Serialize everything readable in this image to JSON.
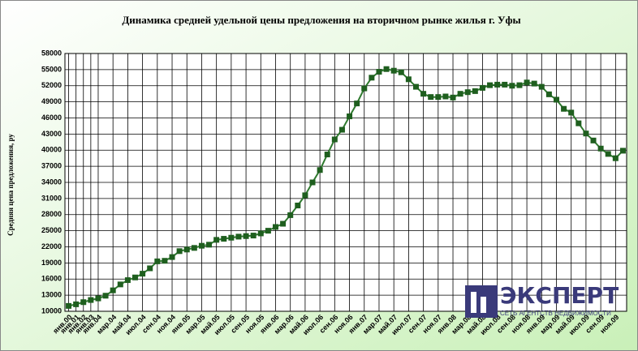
{
  "chart_data": {
    "type": "line",
    "title": "Динамика средней удельной цены предложения на вторичном рынке жилья г. Уфы",
    "y_label": "Средняя цена предложения, ру",
    "categories": [
      "янв.00",
      "янв.01",
      "янв.02",
      "янв.03",
      "янв.04",
      null,
      "мар.04",
      null,
      "май.04",
      null,
      "июл.04",
      null,
      "сен.04",
      null,
      "ноя.04",
      null,
      "янв.05",
      null,
      "мар.05",
      null,
      "май.05",
      null,
      "июл.05",
      null,
      "сен.05",
      null,
      "ноя.05",
      null,
      "янв.06",
      null,
      "мар.06",
      null,
      "май.06",
      null,
      "июл.06",
      null,
      "сен.06",
      null,
      "ноя.06",
      null,
      "янв.07",
      null,
      "мар.07",
      null,
      "май.07",
      null,
      "июл.07",
      null,
      "сен.07",
      null,
      "ноя.07",
      null,
      "янв.08",
      null,
      "мар.08",
      null,
      "май.08",
      null,
      "июл.08",
      null,
      "сен.08",
      null,
      "ноя.08",
      null,
      "янв.09",
      null,
      "мар.09",
      null,
      "май.09",
      null,
      "июл.09",
      null,
      "сен.09",
      null,
      "ноя.09",
      null
    ],
    "series": [
      {
        "name": "Средняя цена предложения",
        "color": "#2f7a2f",
        "marker_color": "#1f5f1f",
        "values": [
          11000,
          11300,
          11700,
          12100,
          12400,
          12900,
          13900,
          15000,
          15800,
          16300,
          17000,
          18000,
          19300,
          19400,
          20100,
          21200,
          21500,
          21800,
          22200,
          22400,
          23300,
          23500,
          23700,
          23900,
          24000,
          24100,
          24500,
          25000,
          25700,
          26300,
          27900,
          29700,
          31600,
          34000,
          36300,
          39200,
          42000,
          43800,
          46300,
          48700,
          51500,
          53500,
          54600,
          55100,
          54800,
          54500,
          53200,
          51800,
          50500,
          49900,
          49900,
          50000,
          49800,
          50500,
          50800,
          51000,
          51600,
          52100,
          52200,
          52200,
          52000,
          52100,
          52600,
          52400,
          51800,
          50400,
          49400,
          47700,
          47000,
          45000,
          43100,
          41800,
          40300,
          39300,
          38500,
          39900
        ]
      }
    ],
    "ylim": [
      10000,
      58000
    ],
    "yticks": [
      10000,
      13000,
      16000,
      19000,
      22000,
      25000,
      28000,
      31000,
      34000,
      37000,
      40000,
      43000,
      46000,
      49000,
      52000,
      55000,
      58000
    ],
    "grid": true,
    "watermark": {
      "name": "ЭКСПЕРТ",
      "tagline": "СЕТЬ АГЕНТСТВ НЕДВИЖИМОСТИ"
    }
  }
}
